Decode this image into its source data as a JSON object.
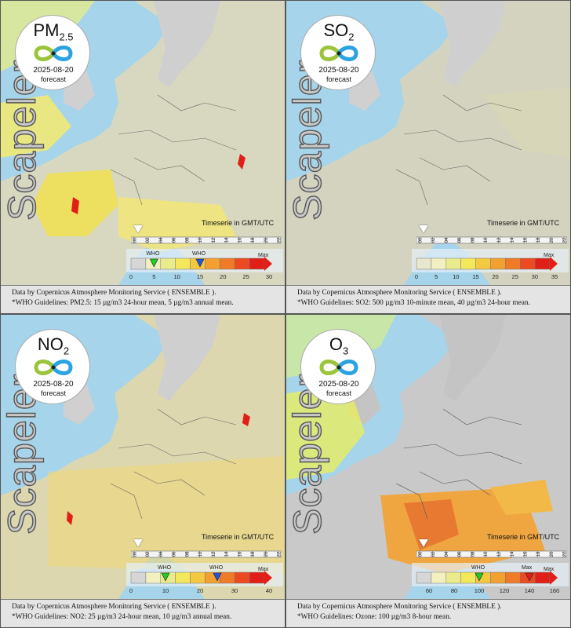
{
  "watermark": "Scapeler",
  "panels": [
    {
      "pollutant": "PM",
      "pollutant_sub": "2.5",
      "date": "2025-08-20",
      "forecast_label": "forecast",
      "timeserie_label": "Timeserie in GMT/UTC",
      "time_ticks": [
        "00",
        "02",
        "04",
        "06",
        "08",
        "10",
        "12",
        "14",
        "16",
        "18",
        "20",
        "22"
      ],
      "who_label": "WHO",
      "max_label": "Max",
      "legend_ticks": [
        "0",
        "5",
        "10",
        "15",
        "20",
        "25",
        "30"
      ],
      "legend_colors": [
        "#d6d6d6",
        "#f3f0c0",
        "#eaeb8c",
        "#f2e85a",
        "#f5c842",
        "#f2a030",
        "#ef7a28",
        "#ec4a20",
        "#e02018"
      ],
      "who_markers": [
        {
          "label": "WHO",
          "value": 5,
          "color": "#22cc22"
        },
        {
          "label": "WHO",
          "value": 15,
          "color": "#2255dd"
        }
      ],
      "legend_max_value": 30,
      "source_text": "Data by Copernicus Atmosphere Monitoring Service ( ENSEMBLE ).",
      "who_text": "*WHO Guidelines: PM2.5: 15 µg/m3 24-hour mean, 5 µg/m3 annual mean."
    },
    {
      "pollutant": "SO",
      "pollutant_sub": "2",
      "date": "2025-08-20",
      "forecast_label": "forecast",
      "timeserie_label": "Timeserie in GMT/UTC",
      "time_ticks": [
        "00",
        "02",
        "04",
        "06",
        "08",
        "10",
        "12",
        "14",
        "16",
        "18",
        "20",
        "22"
      ],
      "who_label": "",
      "max_label": "Max",
      "legend_ticks": [
        "0",
        "5",
        "10",
        "15",
        "20",
        "25",
        "30",
        "35"
      ],
      "legend_colors": [
        "#e8e6cc",
        "#f3f0c0",
        "#eaeb8c",
        "#f2e85a",
        "#f5c842",
        "#f2a030",
        "#ef7a28",
        "#ec4a20",
        "#e02018"
      ],
      "who_markers": [],
      "legend_max_value": 35,
      "source_text": "Data by Copernicus Atmosphere Monitoring Service ( ENSEMBLE ).",
      "who_text": "*WHO Guidelines: SO2: 500 µg/m3 10-minute mean, 40 µg/m3 24-hour mean."
    },
    {
      "pollutant": "NO",
      "pollutant_sub": "2",
      "date": "2025-08-20",
      "forecast_label": "forecast",
      "timeserie_label": "Timeserie in GMT/UTC",
      "time_ticks": [
        "00",
        "02",
        "04",
        "06",
        "08",
        "10",
        "12",
        "14",
        "16",
        "18",
        "20",
        "22"
      ],
      "who_label": "WHO",
      "max_label": "Max",
      "legend_ticks": [
        "0",
        "",
        "10",
        "",
        "20",
        "",
        "30",
        "",
        "40"
      ],
      "legend_colors": [
        "#d6d6d6",
        "#f3f0c0",
        "#eaeb8c",
        "#f2e85a",
        "#f5c842",
        "#f2a030",
        "#ef7a28",
        "#ec4a20",
        "#e02018"
      ],
      "who_markers": [
        {
          "label": "WHO",
          "value": 10,
          "color": "#22cc22"
        },
        {
          "label": "WHO",
          "value": 25,
          "color": "#2255dd"
        }
      ],
      "legend_max_value": 40,
      "source_text": "Data by Copernicus Atmosphere Monitoring Service ( ENSEMBLE ).",
      "who_text": "*WHO Guidelines: NO2: 25 µg/m3 24-hour mean, 10 µg/m3 annual mean."
    },
    {
      "pollutant": "O",
      "pollutant_sub": "3",
      "date": "2025-08-20",
      "forecast_label": "forecast",
      "timeserie_label": "Timeserie in GMT/UTC",
      "time_ticks": [
        "00",
        "02",
        "04",
        "06",
        "08",
        "10",
        "12",
        "14",
        "16",
        "18",
        "20",
        "22"
      ],
      "who_label": "WHO",
      "max_label": "Max",
      "legend_ticks": [
        "",
        "60",
        "",
        "80",
        "",
        "100",
        "",
        "120",
        "",
        "140",
        "",
        "160"
      ],
      "legend_colors": [
        "#d6d6d6",
        "#f3f0c0",
        "#eaeb8c",
        "#f2e85a",
        "#f5c842",
        "#f2a030",
        "#ef7a28",
        "#ec4a20",
        "#e02018"
      ],
      "who_markers": [
        {
          "label": "WHO",
          "value": 100,
          "color": "#22cc22"
        },
        {
          "label": "Max",
          "value": 140,
          "color": "#e02018"
        }
      ],
      "legend_max_value": 160,
      "source_text": "Data by Copernicus Atmosphere Monitoring Service ( ENSEMBLE ).",
      "who_text": "*WHO Guidelines: Ozone: 100 µg/m3 8-hour mean."
    }
  ]
}
